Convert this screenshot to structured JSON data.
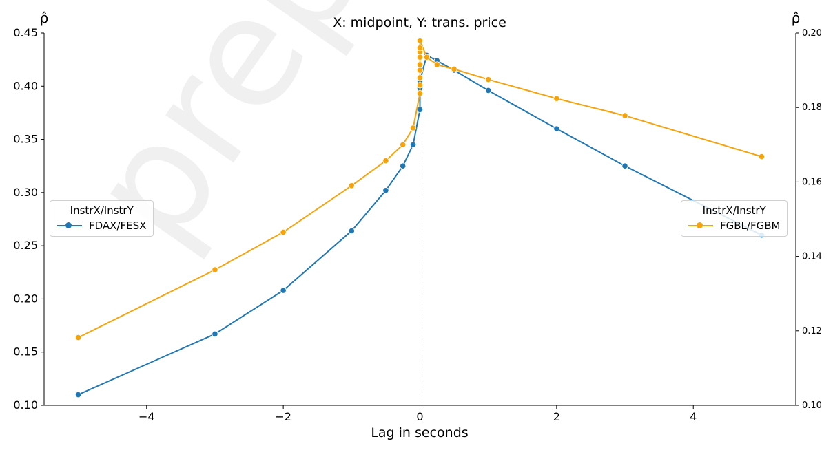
{
  "chart_data": {
    "type": "line",
    "title": "X: midpoint, Y: trans. price",
    "xlabel": "Lag in seconds",
    "ylabel_left": "ρ̂",
    "ylabel_right": "ρ̂",
    "xlim": [
      -5.5,
      5.5
    ],
    "ylim_left": [
      0.1,
      0.45
    ],
    "ylim_right": [
      0.1,
      0.2
    ],
    "x_ticks": [
      -4,
      -2,
      0,
      2,
      4
    ],
    "x_tick_labels": [
      "−4",
      "−2",
      "0",
      "2",
      "4"
    ],
    "y_left_ticks": [
      0.1,
      0.15,
      0.2,
      0.25,
      0.3,
      0.35,
      0.4,
      0.45
    ],
    "y_left_tick_labels": [
      "0.10",
      "0.15",
      "0.20",
      "0.25",
      "0.30",
      "0.35",
      "0.40",
      "0.45"
    ],
    "y_right_ticks": [
      0.1,
      0.12,
      0.14,
      0.16,
      0.18,
      0.2
    ],
    "y_right_tick_labels": [
      "0.10",
      "0.12",
      "0.14",
      "0.16",
      "0.18",
      "0.20"
    ],
    "grid": false,
    "vline_x": 0,
    "series": [
      {
        "name": "FDAX/FESX",
        "axis": "left",
        "color": "#1f77b4",
        "x": [
          -5,
          -3,
          -2,
          -1,
          -0.5,
          -0.25,
          -0.1,
          0,
          0,
          0,
          0.1,
          0.25,
          0.5,
          1,
          2,
          3,
          5
        ],
        "y": [
          0.11,
          0.167,
          0.208,
          0.264,
          0.302,
          0.325,
          0.345,
          0.378,
          0.398,
          0.405,
          0.429,
          0.424,
          0.415,
          0.396,
          0.36,
          0.325,
          0.26
        ]
      },
      {
        "name": "FGBL/FGBM",
        "axis": "right",
        "color": "#f5a30c",
        "x": [
          -5,
          -3,
          -2,
          -1,
          -0.5,
          -0.25,
          -0.1,
          0,
          0,
          0,
          0,
          0,
          0,
          0,
          0,
          0,
          0.1,
          0.25,
          0.5,
          1,
          2,
          3,
          5
        ],
        "y": [
          0.1182,
          0.1364,
          0.1465,
          0.159,
          0.1657,
          0.17,
          0.1745,
          0.1838,
          0.186,
          0.188,
          0.19,
          0.1915,
          0.1935,
          0.195,
          0.196,
          0.198,
          0.1935,
          0.1915,
          0.1903,
          0.1875,
          0.1824,
          0.1778,
          0.1668
        ]
      }
    ],
    "legends": [
      {
        "title": "InstrX/InstrY",
        "placement": "center-left",
        "entry": "FDAX/FESX"
      },
      {
        "title": "InstrX/InstrY",
        "placement": "center-right",
        "entry": "FGBL/FGBM"
      }
    ],
    "watermark": "preprint not peer"
  }
}
